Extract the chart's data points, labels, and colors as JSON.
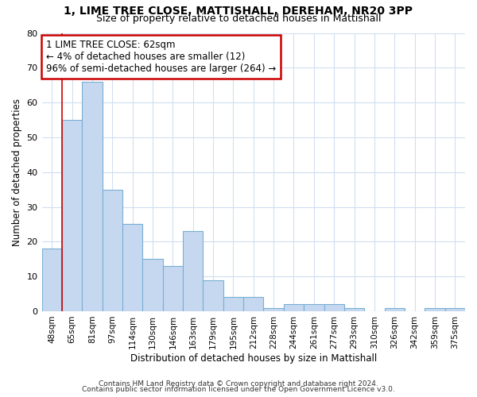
{
  "title1": "1, LIME TREE CLOSE, MATTISHALL, DEREHAM, NR20 3PP",
  "title2": "Size of property relative to detached houses in Mattishall",
  "xlabel": "Distribution of detached houses by size in Mattishall",
  "ylabel": "Number of detached properties",
  "categories": [
    "48sqm",
    "65sqm",
    "81sqm",
    "97sqm",
    "114sqm",
    "130sqm",
    "146sqm",
    "163sqm",
    "179sqm",
    "195sqm",
    "212sqm",
    "228sqm",
    "244sqm",
    "261sqm",
    "277sqm",
    "293sqm",
    "310sqm",
    "326sqm",
    "342sqm",
    "359sqm",
    "375sqm"
  ],
  "values": [
    18,
    55,
    66,
    35,
    25,
    15,
    13,
    23,
    9,
    4,
    4,
    1,
    2,
    2,
    2,
    1,
    0,
    1,
    0,
    1,
    1
  ],
  "bar_color": "#c5d8f0",
  "bar_edge_color": "#7aafd4",
  "annotation_box_color": "#ffffff",
  "annotation_box_edge": "#cc0000",
  "vline_color": "#cc0000",
  "annotation_line1": "1 LIME TREE CLOSE: 62sqm",
  "annotation_line2": "← 4% of detached houses are smaller (12)",
  "annotation_line3": "96% of semi-detached houses are larger (264) →",
  "ylim": [
    0,
    80
  ],
  "yticks": [
    0,
    10,
    20,
    30,
    40,
    50,
    60,
    70,
    80
  ],
  "footer1": "Contains HM Land Registry data © Crown copyright and database right 2024.",
  "footer2": "Contains public sector information licensed under the Open Government Licence v3.0.",
  "bg_color": "#ffffff",
  "grid_color": "#d0dff0"
}
